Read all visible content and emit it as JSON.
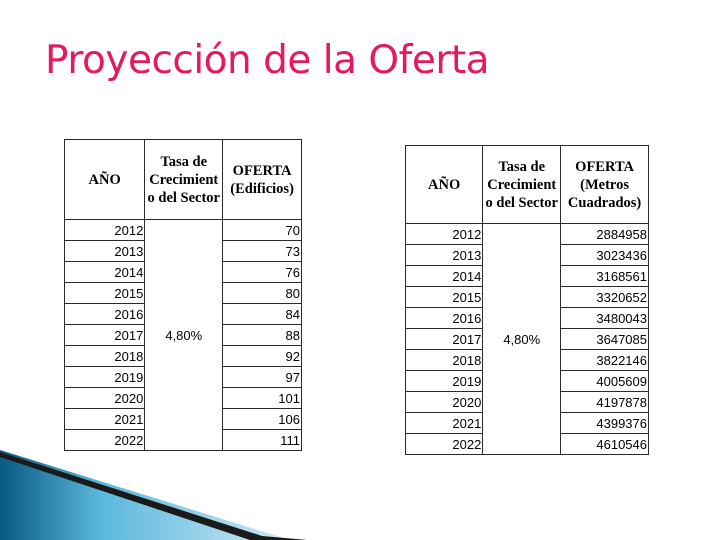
{
  "title": "Proyección de la Oferta",
  "table1": {
    "headers": [
      "AÑO",
      "Tasa de Crecimient o del Sector",
      "OFERTA (Edificios)"
    ],
    "rate": "4,80%",
    "years": [
      "2012",
      "2013",
      "2014",
      "2015",
      "2016",
      "2017",
      "2018",
      "2019",
      "2020",
      "2021",
      "2022"
    ],
    "values": [
      "70",
      "73",
      "76",
      "80",
      "84",
      "88",
      "92",
      "97",
      "101",
      "106",
      "111"
    ]
  },
  "table2": {
    "headers": [
      "AÑO",
      "Tasa de Crecimient o del Sector",
      "OFERTA (Metros Cuadrados)"
    ],
    "rate": "4,80%",
    "years": [
      "2012",
      "2013",
      "2014",
      "2015",
      "2016",
      "2017",
      "2018",
      "2019",
      "2020",
      "2021",
      "2022"
    ],
    "values": [
      "2884958",
      "3023436",
      "3168561",
      "3320652",
      "3480043",
      "3647085",
      "3822146",
      "4005609",
      "4197878",
      "4399376",
      "4610546"
    ]
  },
  "colors": {
    "title": "#e5195f",
    "accent_dark": "#0a5a82",
    "accent_light": "#5bb8dc"
  }
}
